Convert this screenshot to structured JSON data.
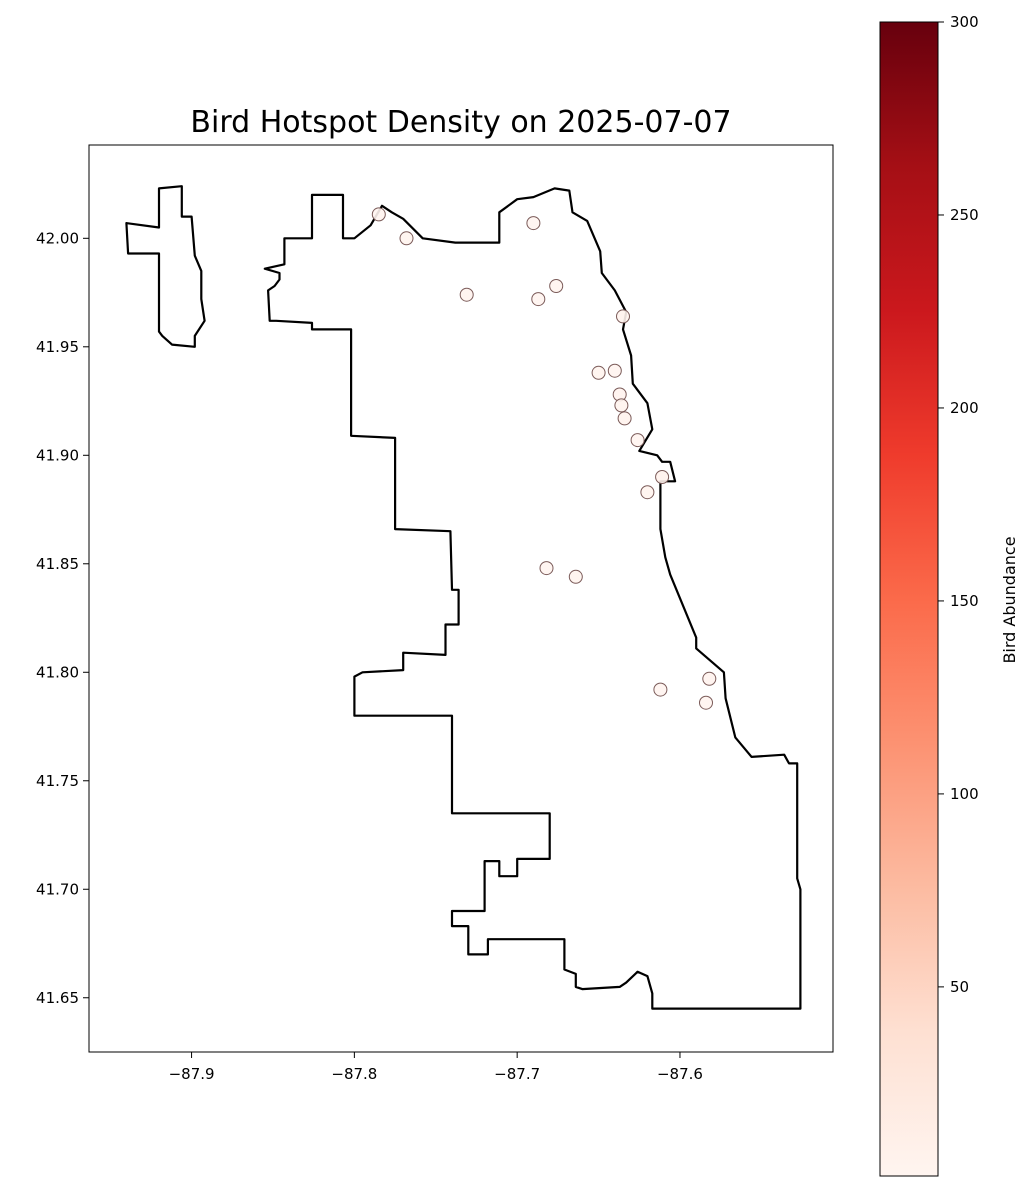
{
  "chart_data": {
    "type": "scatter",
    "title": "Bird Hotspot Density on 2025-07-07",
    "xlabel": "",
    "ylabel": "",
    "xlim": [
      -87.963,
      -87.506
    ],
    "ylim": [
      41.625,
      42.043
    ],
    "x_ticks": [
      -87.9,
      -87.8,
      -87.7,
      -87.6
    ],
    "x_tick_labels": [
      "−87.9",
      "−87.8",
      "−87.7",
      "−87.6"
    ],
    "y_ticks": [
      41.65,
      41.7,
      41.75,
      41.8,
      41.85,
      41.9,
      41.95,
      42.0
    ],
    "y_tick_labels": [
      "41.65",
      "41.70",
      "41.75",
      "41.80",
      "41.85",
      "41.90",
      "41.95",
      "42.00"
    ],
    "grid": false,
    "colormap": "Reds",
    "colors": {
      "low": "#fff5f0",
      "mid": "#fb6a4a",
      "high": "#67000d",
      "outline": "#000000",
      "marker_edge": "#7a5a58"
    },
    "colorbar": {
      "label": "Bird Abundance",
      "range": [
        1,
        300
      ],
      "ticks": [
        50,
        100,
        150,
        200,
        250,
        300
      ],
      "tick_labels": [
        "50",
        "100",
        "150",
        "200",
        "250",
        "300"
      ],
      "placement": "right"
    },
    "points": [
      {
        "x": -87.785,
        "y": 42.011,
        "value": 2
      },
      {
        "x": -87.768,
        "y": 42.0,
        "value": 3
      },
      {
        "x": -87.69,
        "y": 42.007,
        "value": 2
      },
      {
        "x": -87.731,
        "y": 41.974,
        "value": 4
      },
      {
        "x": -87.687,
        "y": 41.972,
        "value": 2
      },
      {
        "x": -87.676,
        "y": 41.978,
        "value": 3
      },
      {
        "x": -87.635,
        "y": 41.964,
        "value": 5
      },
      {
        "x": -87.65,
        "y": 41.938,
        "value": 3
      },
      {
        "x": -87.64,
        "y": 41.939,
        "value": 2
      },
      {
        "x": -87.637,
        "y": 41.928,
        "value": 4
      },
      {
        "x": -87.636,
        "y": 41.923,
        "value": 3
      },
      {
        "x": -87.634,
        "y": 41.917,
        "value": 5
      },
      {
        "x": -87.626,
        "y": 41.907,
        "value": 2
      },
      {
        "x": -87.611,
        "y": 41.89,
        "value": 6
      },
      {
        "x": -87.62,
        "y": 41.883,
        "value": 3
      },
      {
        "x": -87.682,
        "y": 41.848,
        "value": 2
      },
      {
        "x": -87.664,
        "y": 41.844,
        "value": 3
      },
      {
        "x": -87.612,
        "y": 41.792,
        "value": 2
      },
      {
        "x": -87.582,
        "y": 41.797,
        "value": 4
      },
      {
        "x": -87.584,
        "y": 41.786,
        "value": 2
      }
    ],
    "boundary": [
      [
        -87.94,
        42.007
      ],
      [
        -87.92,
        42.005
      ],
      [
        -87.92,
        42.023
      ],
      [
        -87.906,
        42.024
      ],
      [
        -87.906,
        42.01
      ],
      [
        -87.9,
        42.01
      ],
      [
        -87.898,
        41.992
      ],
      [
        -87.894,
        41.985
      ],
      [
        -87.894,
        41.972
      ],
      [
        -87.892,
        41.962
      ],
      [
        -87.898,
        41.955
      ],
      [
        -87.898,
        41.95
      ],
      [
        -87.912,
        41.951
      ],
      [
        -87.918,
        41.955
      ],
      [
        -87.92,
        41.957
      ],
      [
        -87.92,
        41.993
      ],
      [
        -87.939,
        41.993
      ],
      [
        -87.94,
        42.007
      ]
    ],
    "boundary_main": [
      [
        -87.855,
        41.986
      ],
      [
        -87.843,
        41.988
      ],
      [
        -87.843,
        42.0
      ],
      [
        -87.826,
        42.0
      ],
      [
        -87.826,
        42.02
      ],
      [
        -87.807,
        42.02
      ],
      [
        -87.807,
        42.0
      ],
      [
        -87.8,
        42.0
      ],
      [
        -87.79,
        42.006
      ],
      [
        -87.783,
        42.015
      ],
      [
        -87.777,
        42.012
      ],
      [
        -87.77,
        42.009
      ],
      [
        -87.758,
        42.0
      ],
      [
        -87.738,
        41.998
      ],
      [
        -87.711,
        41.998
      ],
      [
        -87.711,
        42.012
      ],
      [
        -87.7,
        42.018
      ],
      [
        -87.69,
        42.019
      ],
      [
        -87.677,
        42.023
      ],
      [
        -87.668,
        42.022
      ],
      [
        -87.666,
        42.012
      ],
      [
        -87.657,
        42.008
      ],
      [
        -87.649,
        41.994
      ],
      [
        -87.648,
        41.984
      ],
      [
        -87.64,
        41.976
      ],
      [
        -87.633,
        41.966
      ],
      [
        -87.635,
        41.958
      ],
      [
        -87.63,
        41.946
      ],
      [
        -87.629,
        41.933
      ],
      [
        -87.62,
        41.924
      ],
      [
        -87.617,
        41.912
      ],
      [
        -87.625,
        41.902
      ],
      [
        -87.614,
        41.9
      ],
      [
        -87.611,
        41.897
      ],
      [
        -87.606,
        41.897
      ],
      [
        -87.603,
        41.888
      ],
      [
        -87.612,
        41.888
      ],
      [
        -87.612,
        41.866
      ],
      [
        -87.609,
        41.853
      ],
      [
        -87.606,
        41.845
      ],
      [
        -87.59,
        41.816
      ],
      [
        -87.59,
        41.811
      ],
      [
        -87.573,
        41.8
      ],
      [
        -87.572,
        41.788
      ],
      [
        -87.566,
        41.77
      ],
      [
        -87.556,
        41.761
      ],
      [
        -87.536,
        41.762
      ],
      [
        -87.533,
        41.758
      ],
      [
        -87.528,
        41.758
      ],
      [
        -87.528,
        41.705
      ],
      [
        -87.526,
        41.7
      ],
      [
        -87.526,
        41.645
      ],
      [
        -87.576,
        41.645
      ],
      [
        -87.617,
        41.645
      ],
      [
        -87.617,
        41.652
      ],
      [
        -87.62,
        41.66
      ],
      [
        -87.626,
        41.662
      ],
      [
        -87.633,
        41.657
      ],
      [
        -87.637,
        41.655
      ],
      [
        -87.66,
        41.654
      ],
      [
        -87.664,
        41.655
      ],
      [
        -87.664,
        41.661
      ],
      [
        -87.671,
        41.663
      ],
      [
        -87.671,
        41.677
      ],
      [
        -87.686,
        41.677
      ],
      [
        -87.718,
        41.677
      ],
      [
        -87.718,
        41.67
      ],
      [
        -87.73,
        41.67
      ],
      [
        -87.73,
        41.683
      ],
      [
        -87.74,
        41.683
      ],
      [
        -87.74,
        41.69
      ],
      [
        -87.72,
        41.69
      ],
      [
        -87.72,
        41.713
      ],
      [
        -87.711,
        41.713
      ],
      [
        -87.711,
        41.706
      ],
      [
        -87.7,
        41.706
      ],
      [
        -87.7,
        41.714
      ],
      [
        -87.68,
        41.714
      ],
      [
        -87.68,
        41.735
      ],
      [
        -87.74,
        41.735
      ],
      [
        -87.74,
        41.78
      ],
      [
        -87.8,
        41.78
      ],
      [
        -87.8,
        41.798
      ],
      [
        -87.795,
        41.8
      ],
      [
        -87.77,
        41.801
      ],
      [
        -87.77,
        41.809
      ],
      [
        -87.744,
        41.808
      ],
      [
        -87.744,
        41.822
      ],
      [
        -87.736,
        41.822
      ],
      [
        -87.736,
        41.838
      ],
      [
        -87.74,
        41.838
      ],
      [
        -87.741,
        41.865
      ],
      [
        -87.775,
        41.866
      ],
      [
        -87.775,
        41.908
      ],
      [
        -87.802,
        41.909
      ],
      [
        -87.802,
        41.958
      ],
      [
        -87.826,
        41.958
      ],
      [
        -87.826,
        41.961
      ],
      [
        -87.848,
        41.962
      ],
      [
        -87.852,
        41.962
      ],
      [
        -87.853,
        41.976
      ],
      [
        -87.849,
        41.978
      ],
      [
        -87.846,
        41.981
      ],
      [
        -87.846,
        41.984
      ],
      [
        -87.855,
        41.986
      ]
    ]
  }
}
